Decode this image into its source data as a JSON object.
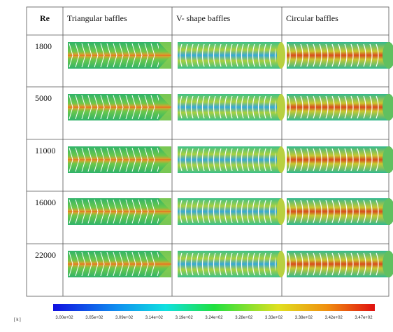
{
  "table": {
    "header": [
      "Re",
      "Triangular baffles",
      "V- shape baffles",
      "Circular baffles"
    ],
    "rows": [
      [
        "1800"
      ],
      [
        "5000"
      ],
      [
        "11000"
      ],
      [
        "16000"
      ],
      [
        "22000"
      ]
    ]
  },
  "colorbar": {
    "unit": "[ k ]",
    "ticks": [
      "3.00e+02",
      "3.05e+02",
      "3.09e+02",
      "3.14e+02",
      "3.19e+02",
      "3.24e+02",
      "3.28e+02",
      "3.33e+02",
      "3.38e+02",
      "3.42e+02",
      "3.47e+02"
    ]
  }
}
